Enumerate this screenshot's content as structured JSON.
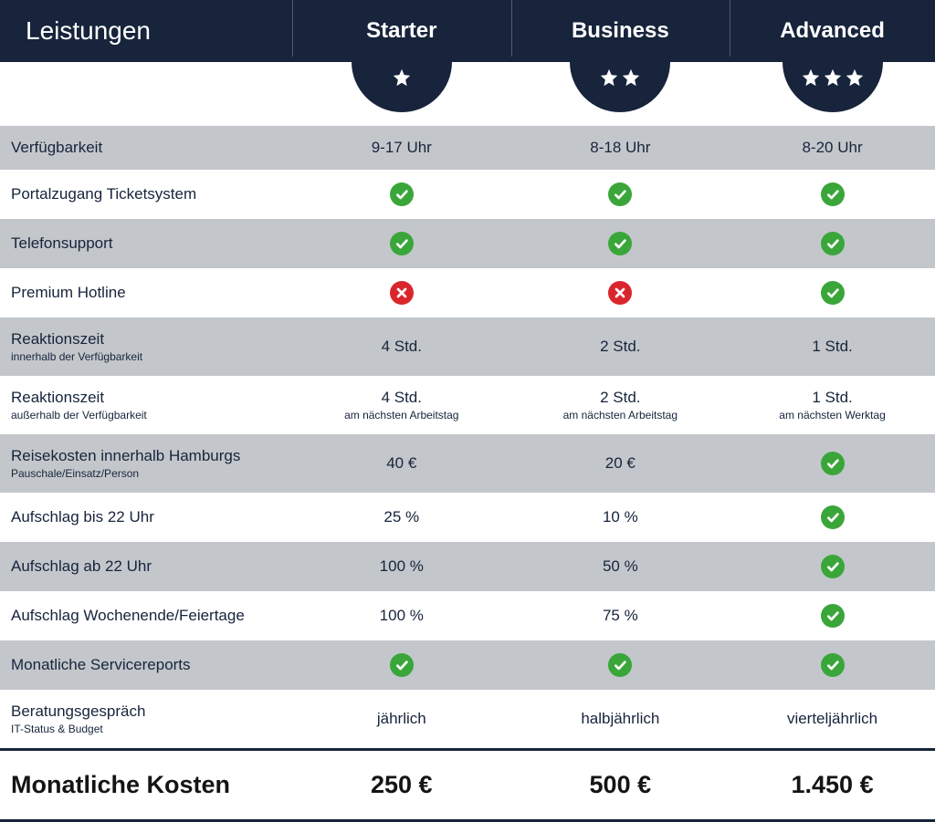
{
  "header": {
    "features_label": "Leistungen",
    "plans": [
      "Starter",
      "Business",
      "Advanced"
    ],
    "stars": [
      1,
      2,
      3
    ]
  },
  "colors": {
    "header_bg": "#17243b",
    "stripe": "#c3c7cb",
    "check_bg": "#3aa63a",
    "cross_bg": "#d9262c",
    "text": "#17243b"
  },
  "rows": [
    {
      "label": "Verfügbarkeit",
      "sub": null,
      "cells": [
        {
          "type": "text",
          "value": "9-17 Uhr"
        },
        {
          "type": "text",
          "value": "8-18 Uhr"
        },
        {
          "type": "text",
          "value": "8-20 Uhr"
        }
      ]
    },
    {
      "label": "Portalzugang Ticketsystem",
      "sub": null,
      "cells": [
        {
          "type": "check"
        },
        {
          "type": "check"
        },
        {
          "type": "check"
        }
      ]
    },
    {
      "label": "Telefonsupport",
      "sub": null,
      "cells": [
        {
          "type": "check"
        },
        {
          "type": "check"
        },
        {
          "type": "check"
        }
      ]
    },
    {
      "label": "Premium Hotline",
      "sub": null,
      "cells": [
        {
          "type": "cross"
        },
        {
          "type": "cross"
        },
        {
          "type": "check"
        }
      ]
    },
    {
      "label": "Reaktionszeit",
      "sub": "innerhalb der Verfügbarkeit",
      "cells": [
        {
          "type": "text",
          "value": "4 Std."
        },
        {
          "type": "text",
          "value": "2 Std."
        },
        {
          "type": "text",
          "value": "1 Std."
        }
      ]
    },
    {
      "label": "Reaktionszeit",
      "sub": "außerhalb der Verfügbarkeit",
      "cells": [
        {
          "type": "text",
          "value": "4 Std.",
          "sub": "am nächsten Arbeitstag"
        },
        {
          "type": "text",
          "value": "2 Std.",
          "sub": "am nächsten Arbeitstag"
        },
        {
          "type": "text",
          "value": "1 Std.",
          "sub": "am nächsten Werktag"
        }
      ]
    },
    {
      "label": "Reisekosten innerhalb Hamburgs",
      "sub": "Pauschale/Einsatz/Person",
      "cells": [
        {
          "type": "text",
          "value": "40 €"
        },
        {
          "type": "text",
          "value": "20 €"
        },
        {
          "type": "check"
        }
      ]
    },
    {
      "label": "Aufschlag bis 22 Uhr",
      "sub": null,
      "cells": [
        {
          "type": "text",
          "value": "25 %"
        },
        {
          "type": "text",
          "value": "10 %"
        },
        {
          "type": "check"
        }
      ]
    },
    {
      "label": "Aufschlag ab 22 Uhr",
      "sub": null,
      "cells": [
        {
          "type": "text",
          "value": "100 %"
        },
        {
          "type": "text",
          "value": "50 %"
        },
        {
          "type": "check"
        }
      ]
    },
    {
      "label": "Aufschlag Wochenende/Feiertage",
      "sub": null,
      "cells": [
        {
          "type": "text",
          "value": "100 %"
        },
        {
          "type": "text",
          "value": "75 %"
        },
        {
          "type": "check"
        }
      ]
    },
    {
      "label": "Monatliche Servicereports",
      "sub": null,
      "cells": [
        {
          "type": "check"
        },
        {
          "type": "check"
        },
        {
          "type": "check"
        }
      ]
    },
    {
      "label": "Beratungsgespräch",
      "sub": "IT-Status & Budget",
      "cells": [
        {
          "type": "text",
          "value": "jährlich"
        },
        {
          "type": "text",
          "value": "halbjährlich"
        },
        {
          "type": "text",
          "value": "vierteljährlich"
        }
      ]
    }
  ],
  "footer": {
    "label": "Monatliche Kosten",
    "prices": [
      "250 €",
      "500 €",
      "1.450 €"
    ]
  }
}
